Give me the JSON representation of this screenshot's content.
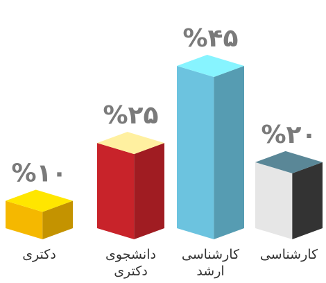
{
  "chart_data": {
    "type": "bar3d",
    "categories": [
      "دکتری",
      "دانشجوی دکتری",
      "کارشناسی ارشد",
      "کارشناسی"
    ],
    "values": [
      10,
      25,
      45,
      20
    ],
    "value_labels": [
      "%۱۰",
      "%۲۵",
      "%۴۵",
      "%۲۰"
    ],
    "colors": [
      "#f5b800",
      "#c8232a",
      "#6cc3df",
      "#e6e6e6"
    ]
  }
}
